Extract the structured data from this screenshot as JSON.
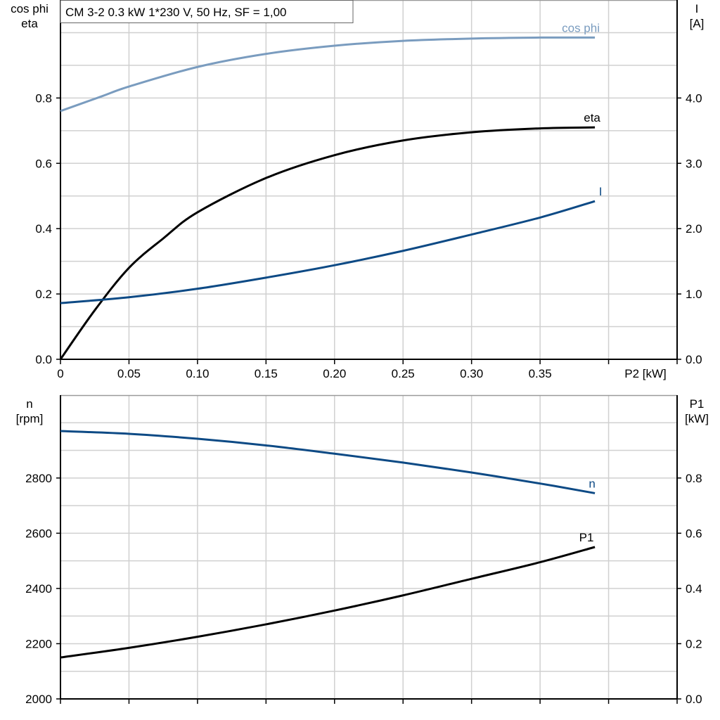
{
  "chart_data": [
    {
      "type": "line",
      "title": "CM 3-2   0.3 kW   1*230 V, 50 Hz, SF = 1,00",
      "xlabel": "P2 [kW]",
      "xlim": [
        0,
        0.45
      ],
      "xticks": [
        0,
        0.05,
        0.1,
        0.15,
        0.2,
        0.25,
        0.3,
        0.35
      ],
      "xtick_labels": [
        "0",
        "0.05",
        "0.10",
        "0.15",
        "0.20",
        "0.25",
        "0.30",
        "0.35"
      ],
      "ylabel_left": [
        "cos phi",
        "eta"
      ],
      "ylim_left": [
        0,
        1.1
      ],
      "yticks_left": [
        "0.0",
        "0.2",
        "0.4",
        "0.6",
        "0.8"
      ],
      "ylabel_right": [
        "I",
        "[A]"
      ],
      "ylim_right": [
        0,
        5.5
      ],
      "yticks_right": [
        "0.0",
        "1.0",
        "2.0",
        "3.0",
        "4.0"
      ],
      "grid": true,
      "series": [
        {
          "name": "cos phi",
          "axis": "left",
          "color": "#7a9cbf",
          "x": [
            0,
            0.03,
            0.05,
            0.1,
            0.15,
            0.2,
            0.25,
            0.3,
            0.35,
            0.39
          ],
          "y": [
            0.76,
            0.805,
            0.835,
            0.895,
            0.935,
            0.96,
            0.975,
            0.982,
            0.985,
            0.985
          ]
        },
        {
          "name": "eta",
          "axis": "left",
          "color": "#000000",
          "x": [
            0,
            0.025,
            0.05,
            0.075,
            0.1,
            0.15,
            0.2,
            0.25,
            0.3,
            0.35,
            0.39
          ],
          "y": [
            0,
            0.15,
            0.28,
            0.37,
            0.45,
            0.555,
            0.625,
            0.67,
            0.695,
            0.707,
            0.71
          ]
        },
        {
          "name": "I",
          "axis": "right",
          "color": "#0d4a85",
          "x": [
            0,
            0.05,
            0.1,
            0.15,
            0.2,
            0.25,
            0.3,
            0.35,
            0.39
          ],
          "y": [
            0.86,
            0.95,
            1.08,
            1.25,
            1.44,
            1.66,
            1.91,
            2.17,
            2.42
          ]
        }
      ]
    },
    {
      "type": "line",
      "xlim": [
        0,
        0.45
      ],
      "ylabel_left": [
        "n",
        "[rpm]"
      ],
      "ylim_left": [
        2000,
        3100
      ],
      "yticks_left": [
        "2000",
        "2200",
        "2400",
        "2600",
        "2800"
      ],
      "ylabel_right": [
        "P1",
        "[kW]"
      ],
      "ylim_right": [
        0,
        1.1
      ],
      "yticks_right": [
        "0.0",
        "0.2",
        "0.4",
        "0.6",
        "0.8"
      ],
      "grid": true,
      "series": [
        {
          "name": "n",
          "axis": "left",
          "color": "#0d4a85",
          "x": [
            0,
            0.05,
            0.1,
            0.15,
            0.2,
            0.25,
            0.3,
            0.35,
            0.39
          ],
          "y": [
            2970,
            2960,
            2942,
            2918,
            2888,
            2856,
            2820,
            2780,
            2745
          ]
        },
        {
          "name": "P1",
          "axis": "right",
          "color": "#000000",
          "x": [
            0,
            0.05,
            0.1,
            0.15,
            0.2,
            0.25,
            0.3,
            0.35,
            0.39
          ],
          "y": [
            0.15,
            0.185,
            0.225,
            0.27,
            0.32,
            0.375,
            0.435,
            0.495,
            0.55
          ]
        }
      ]
    }
  ]
}
